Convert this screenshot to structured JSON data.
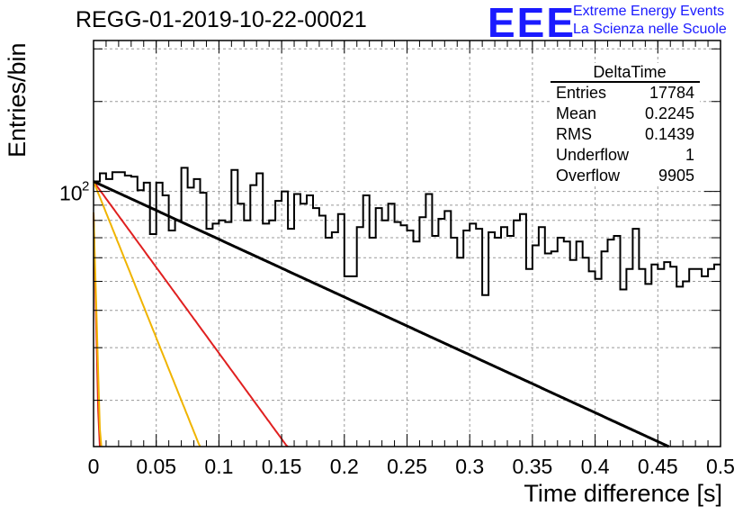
{
  "chart_data": {
    "type": "line",
    "title": "REGG-01-2019-10-22-00021",
    "xlabel": "Time difference [s]",
    "ylabel": "Entries/bin",
    "xlim": [
      0,
      0.5
    ],
    "ylim": [
      14,
      320
    ],
    "yscale": "log",
    "grid": true,
    "x_ticks": [
      "0",
      "0.05",
      "0.1",
      "0.15",
      "0.2",
      "0.25",
      "0.3",
      "0.35",
      "0.4",
      "0.45",
      "0.5"
    ],
    "y_tick_label": {
      "base": "10",
      "exponent": "2",
      "value": 100
    },
    "histogram": {
      "name": "DeltaTime",
      "bin_width": 0.005,
      "values": [
        108,
        115,
        110,
        116,
        116,
        113,
        112,
        101,
        107,
        72,
        107,
        97,
        74,
        80,
        120,
        103,
        110,
        99,
        75,
        78,
        80,
        79,
        118,
        91,
        80,
        105,
        115,
        78,
        80,
        93,
        100,
        75,
        98,
        91,
        97,
        88,
        83,
        70,
        73,
        84,
        52,
        52,
        76,
        97,
        70,
        88,
        80,
        91,
        79,
        77,
        74,
        68,
        82,
        98,
        71,
        81,
        86,
        70,
        60,
        74,
        78,
        75,
        45,
        73,
        70,
        76,
        71,
        80,
        84,
        55,
        66,
        76,
        62,
        63,
        70,
        68,
        59,
        68,
        60,
        54,
        51,
        63,
        69,
        71,
        47,
        55,
        75,
        55,
        49,
        57,
        55,
        58,
        56,
        48,
        50,
        55,
        55,
        52,
        55,
        57
      ]
    },
    "series": [
      {
        "role": "total-fit",
        "color": "#000000",
        "a": 108,
        "tau": 0.2245
      },
      {
        "role": "component-slow",
        "color": "#e02020",
        "a": 108,
        "tau": 0.0756
      },
      {
        "role": "component-mid",
        "color": "#f0b400",
        "a": 108,
        "tau": 0.0415
      },
      {
        "role": "component-fast-red",
        "color": "#e02020",
        "a": 85,
        "tau": 0.00245
      },
      {
        "role": "component-fast-yellow",
        "color": "#f0b400",
        "a": 85,
        "tau": 0.003
      }
    ]
  },
  "stats": {
    "title": "DeltaTime",
    "rows": [
      {
        "label": "Entries",
        "value": "17784"
      },
      {
        "label": "Mean",
        "value": "0.2245"
      },
      {
        "label": "RMS",
        "value": "0.1439"
      },
      {
        "label": "Underflow",
        "value": "1"
      },
      {
        "label": "Overflow",
        "value": "9905"
      }
    ]
  },
  "logo": {
    "mark": "EEE",
    "line1": "Extreme Energy Events",
    "line2": "La Scienza nelle Scuole"
  }
}
